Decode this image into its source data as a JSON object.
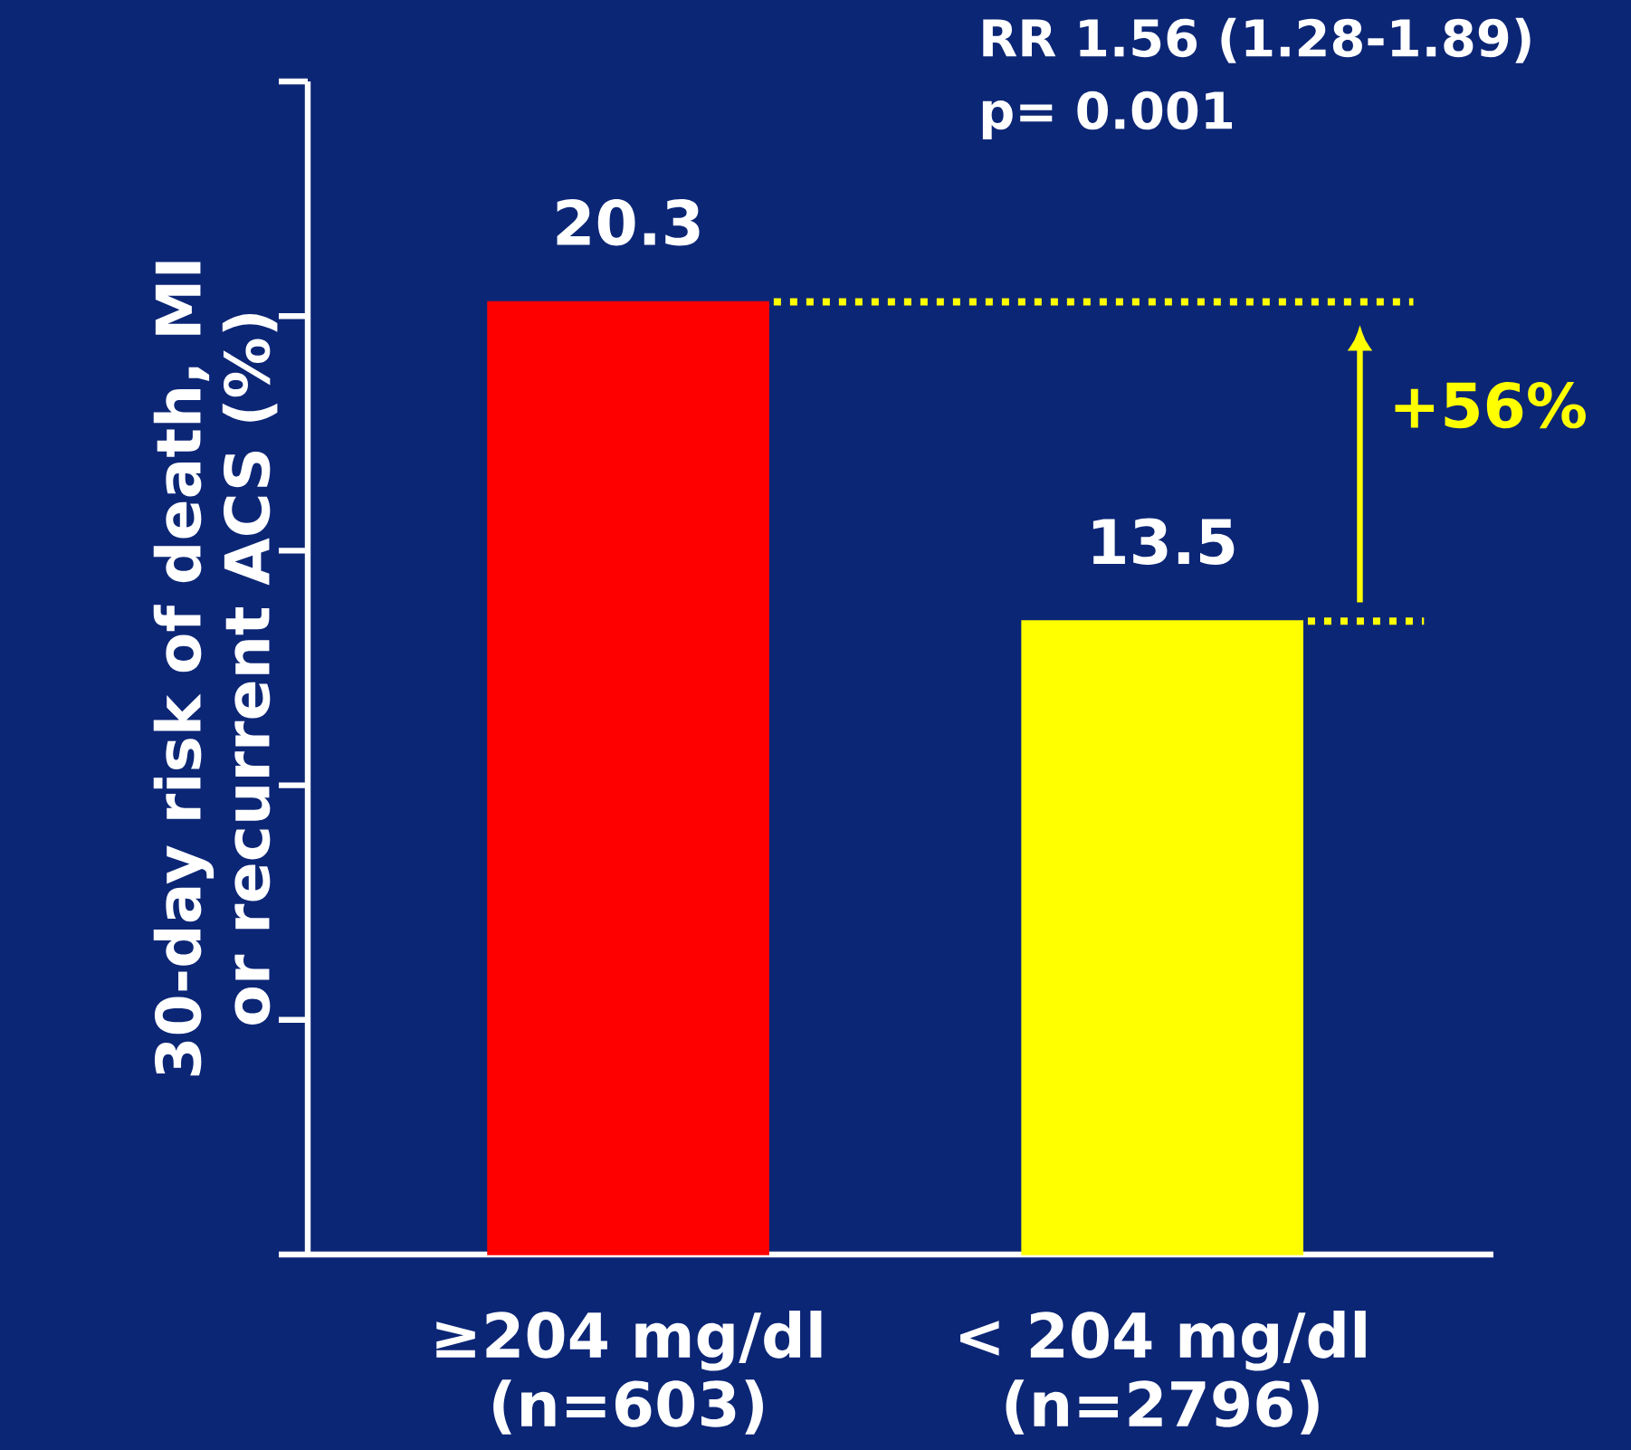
{
  "chart_data": {
    "type": "bar",
    "ylabel": "30-day risk of death, MI or recurrent ACS (%)",
    "categories": [
      "≥204 mg/dl (n=603)",
      "< 204 mg/dl (n=2796)"
    ],
    "values": [
      20.3,
      13.5
    ],
    "colors": [
      "#ff0000",
      "#ffff00"
    ],
    "data_labels": true,
    "ylim": [
      0,
      25
    ],
    "tick_labels": "x",
    "ref_lines": [
      {
        "axis": "y",
        "value": 20.3,
        "color": "#ffff00",
        "line_style": "dotted"
      },
      {
        "axis": "y",
        "value": 13.5,
        "color": "#ffff00",
        "line_style": "dotted"
      }
    ],
    "annotations": [
      "RR 1.56 (1.28-1.89)",
      "p= 0.001",
      "+56%"
    ]
  }
}
